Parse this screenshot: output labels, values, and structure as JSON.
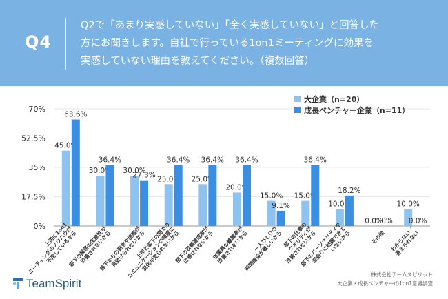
{
  "header": {
    "badge": "Q4",
    "question_lines": [
      "Q2で「あまり実感していない」「全く実感していない」と回答した",
      "方にお聞きします。自社で行っている1on1ミーティングに効果を",
      "実感していない理由を教えてください。（複数回答）"
    ]
  },
  "chart_data": {
    "type": "bar",
    "ylim": [
      0,
      70
    ],
    "yticks": [
      "0%",
      "17.5%",
      "35%",
      "52.5%",
      "70%"
    ],
    "ytick_values": [
      0,
      17.5,
      35,
      52.5,
      70
    ],
    "grid": true,
    "legend_position": "top-right",
    "categories": [
      "上司に1on1ミーティングのノウハウが不足しているから",
      "部下の業務の生産性が改善されないから",
      "部下からの発言や提案が見受けられないから",
      "上司と部下の間でのコミュニケーションの頻度に変化が見られないから",
      "部下の目標達成度が改善されないから",
      "従業員の離職率が改善されないから",
      "一人ひとりの時間確保が難しいから",
      "部下の仕事のクオリティが改善されないから",
      "部下のパーソナリティを深掘りに把握できていないから",
      "その他",
      "わからない／答えられない"
    ],
    "category_lines": [
      [
        "上司に1on1",
        "ミーティングのノウハウが",
        "不足しているから"
      ],
      [
        "部下の業務の生産性が",
        "改善されないから"
      ],
      [
        "部下からの発言や提案が",
        "見受けられないから"
      ],
      [
        "上司と部下の間での",
        "コミュニケーションの頻度に",
        "変化が見られないから"
      ],
      [
        "部下の目標達成度が",
        "改善されないから"
      ],
      [
        "従業員の離職率が",
        "改善されないから"
      ],
      [
        "一人ひとりの",
        "時間確保が難しいから"
      ],
      [
        "部下の仕事の",
        "クオリティが",
        "改善されないから"
      ],
      [
        "部下のパーソナリティを",
        "深掘りに把握できて",
        "いないから"
      ],
      [
        "その他"
      ],
      [
        "わからない／",
        "答えられない"
      ]
    ],
    "series": [
      {
        "name": "大企業（n=20）",
        "color": "#8ec3ef",
        "values": [
          45.0,
          30.0,
          30.0,
          25.0,
          25.0,
          20.0,
          15.0,
          15.0,
          10.0,
          0.0,
          10.0
        ],
        "labels": [
          "45.0%",
          "30.0%",
          "30.0%",
          "25.0%",
          "25.0%",
          "20.0%",
          "15.0%",
          "15.0%",
          "10.0%",
          "0.0%",
          "10.0%"
        ]
      },
      {
        "name": "成長ベンチャー企業（n=11）",
        "color": "#3a8fe2",
        "values": [
          63.6,
          36.4,
          27.3,
          36.4,
          36.4,
          36.4,
          9.1,
          36.4,
          18.2,
          0.0,
          0.0
        ],
        "labels": [
          "63.6%",
          "36.4%",
          "27.3%",
          "36.4%",
          "36.4%",
          "36.4%",
          "9.1%",
          "36.4%",
          "18.2%",
          "0.0%",
          "0.0%"
        ]
      }
    ]
  },
  "footer": {
    "logo": "TeamSpirit",
    "note_lines": [
      "株式会社チームスピリット",
      "大企業・成長ベンチャーの1on1意識調査"
    ]
  }
}
